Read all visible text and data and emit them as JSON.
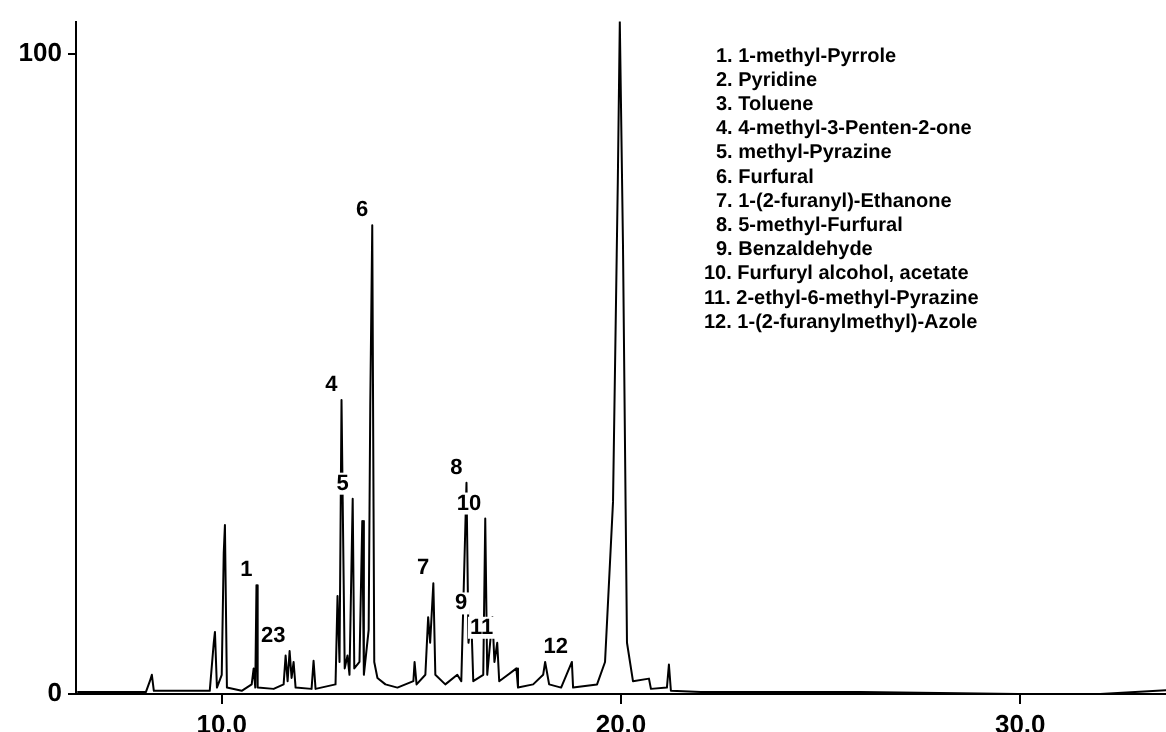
{
  "chart_data": {
    "type": "line",
    "x": [
      6.4,
      8.1,
      8.2,
      8.25,
      8.3,
      9.7,
      9.8,
      9.83,
      9.88,
      10.0,
      10.05,
      10.08,
      10.13,
      10.5,
      10.75,
      10.8,
      10.84,
      10.87,
      10.9,
      11.3,
      11.55,
      11.6,
      11.65,
      11.7,
      11.75,
      11.8,
      11.85,
      12.25,
      12.3,
      12.35,
      12.85,
      12.9,
      12.95,
      13.0,
      13.03,
      13.08,
      13.15,
      13.2,
      13.28,
      13.32,
      13.45,
      13.52,
      13.56,
      13.68,
      13.72,
      13.77,
      13.82,
      13.9,
      14.1,
      14.4,
      14.8,
      14.83,
      14.88,
      15.1,
      15.17,
      15.22,
      15.3,
      15.35,
      15.6,
      15.9,
      16.0,
      16.13,
      16.18,
      16.25,
      16.3,
      16.55,
      16.6,
      16.65,
      16.78,
      16.83,
      16.9,
      16.95,
      17.38,
      17.42,
      17.8,
      18.05,
      18.1,
      18.2,
      18.5,
      18.77,
      18.8,
      19.4,
      19.6,
      19.8,
      19.92,
      19.97,
      20.05,
      20.15,
      20.3,
      20.7,
      20.75,
      21.15,
      21.2,
      21.25,
      22,
      26,
      30,
      32,
      33.65
    ],
    "series": [
      {
        "color": "#000000",
        "values": [
          0.3,
          0.3,
          2,
          3,
          0.5,
          0.5,
          8,
          9.7,
          1,
          3,
          22,
          26.4,
          1,
          0.5,
          1.5,
          4,
          1,
          17,
          1,
          0.8,
          1.5,
          6,
          2,
          6.7,
          2.5,
          5,
          1,
          0.8,
          5.2,
          0.8,
          1.5,
          15.3,
          5,
          45.9,
          30,
          4,
          6,
          3,
          30.5,
          4,
          5,
          27,
          3,
          10,
          45,
          73.2,
          5,
          2.5,
          1.5,
          1,
          2,
          5,
          1.5,
          3,
          12,
          8,
          17.3,
          3,
          1.5,
          3,
          2,
          33,
          8,
          11.8,
          2,
          3,
          27.4,
          3,
          12,
          5,
          8,
          2,
          4,
          1,
          1.5,
          3,
          5,
          1.5,
          1,
          5,
          1,
          1.5,
          5,
          30,
          80,
          105,
          70,
          8,
          2,
          2.4,
          0.8,
          1,
          4.6,
          0.5,
          0.3,
          0.3,
          0,
          0,
          0.6
        ]
      }
    ],
    "xlim": [
      6.35,
      33.65
    ],
    "ylim": [
      0,
      105
    ],
    "xticks": [
      {
        "value": 10,
        "label": "10.0"
      },
      {
        "value": 20,
        "label": "20.0"
      },
      {
        "value": 30,
        "label": "30.0"
      }
    ],
    "yticks": [
      0,
      100
    ],
    "grid": false,
    "legend": false,
    "marker": "none",
    "line_style": "solid",
    "annotations": [
      {
        "text": "1",
        "x": 10.87,
        "y": 17
      },
      {
        "text": "23",
        "x": 11.7,
        "y": 6.7
      },
      {
        "text": "4",
        "x": 13.0,
        "y": 45.9
      },
      {
        "text": "5",
        "x": 13.28,
        "y": 30.5
      },
      {
        "text": "6",
        "x": 13.77,
        "y": 73.2
      },
      {
        "text": "7",
        "x": 15.3,
        "y": 17.3
      },
      {
        "text": "8",
        "x": 16.13,
        "y": 33
      },
      {
        "text": "9",
        "x": 16.25,
        "y": 11.8
      },
      {
        "text": "10",
        "x": 16.6,
        "y": 27.4
      },
      {
        "text": "11",
        "x": 16.9,
        "y": 8
      },
      {
        "text": "12",
        "x": 18.77,
        "y": 5
      },
      "1. 1-methyl-Pyrrole",
      "2. Pyridine",
      "3. Toluene",
      "4. 4-methyl-3-Penten-2-one",
      "5. methyl-Pyrazine",
      "6. Furfural",
      "7. 1-(2-furanyl)-Ethanone",
      "8. 5-methyl-Furfural",
      "9. Benzaldehyde",
      "10. Furfuryl alcohol, acetate",
      "11. 2-ethyl-6-methyl-Pyrazine",
      "12. 1-(2-furanylmethyl)-Azole"
    ]
  }
}
